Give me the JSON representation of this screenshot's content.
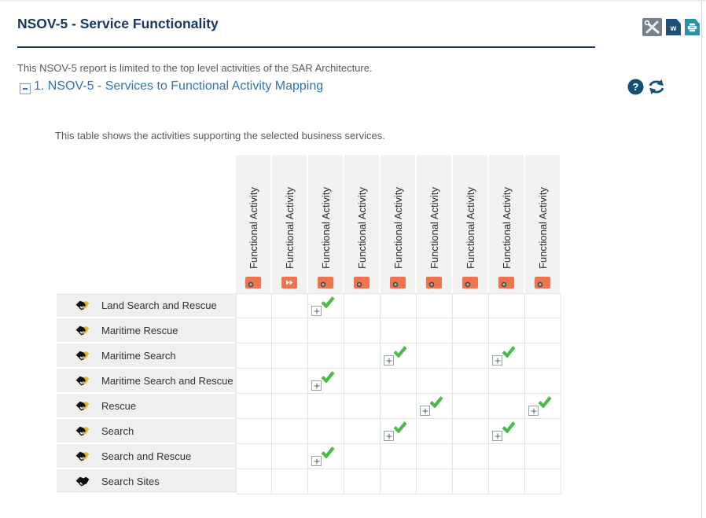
{
  "header": {
    "title": "NSOV-5 - Service Functionality",
    "toolbar_icons": [
      {
        "name": "tools-icon"
      },
      {
        "name": "word-export-icon",
        "letter": "w"
      },
      {
        "name": "print-icon"
      }
    ]
  },
  "intro_text": "This NSOV-5 report is limited to the top level activities of the SAR Architecture.",
  "section": {
    "heading": "1. NSOV-5 - Services to Functional Activity Mapping",
    "collapse_icon": "collapse-minus-icon",
    "help_icon": "help-icon",
    "refresh_icon": "refresh-icon"
  },
  "table_caption": "This table shows the activities supporting the selected business services.",
  "matrix": {
    "columns": [
      {
        "label": "Functional Activity",
        "icon": "functional-activity-icon"
      },
      {
        "label": "Functional Activity",
        "icon": "functional-activity-forward-icon"
      },
      {
        "label": "Functional Activity",
        "icon": "functional-activity-icon"
      },
      {
        "label": "Functional Activity",
        "icon": "functional-activity-icon"
      },
      {
        "label": "Functional Activity",
        "icon": "functional-activity-icon"
      },
      {
        "label": "Functional Activity",
        "icon": "functional-activity-icon"
      },
      {
        "label": "Functional Activity",
        "icon": "functional-activity-icon"
      },
      {
        "label": "Functional Activity",
        "icon": "functional-activity-icon"
      },
      {
        "label": "Functional Activity",
        "icon": "functional-activity-icon"
      }
    ],
    "rows": [
      {
        "label": "Land Search and Rescue",
        "icon": "service-icon",
        "checks": [
          3
        ]
      },
      {
        "label": "Maritime Rescue",
        "icon": "service-icon",
        "checks": []
      },
      {
        "label": "Maritime Search",
        "icon": "service-icon",
        "checks": [
          5,
          8
        ]
      },
      {
        "label": "Maritime Search and Rescue",
        "icon": "service-icon",
        "checks": [
          3
        ]
      },
      {
        "label": "Rescue",
        "icon": "service-icon",
        "checks": [
          6,
          9
        ]
      },
      {
        "label": "Search",
        "icon": "service-icon",
        "checks": [
          5,
          8
        ]
      },
      {
        "label": "Search and Rescue",
        "icon": "service-icon",
        "checks": [
          3
        ]
      },
      {
        "label": "Search Sites",
        "icon": "service-black-icon",
        "checks": []
      }
    ],
    "check_icon": "green-check-icon",
    "expand_icon": "expand-plus-icon"
  },
  "colors": {
    "title_navy": "#17375D",
    "section_blue": "#2E74B5",
    "icon_navy": "#174F76",
    "orange_icon": "#EE7450",
    "check_green": "#4CBB4F",
    "word_blue": "#1F4E79",
    "print_teal": "#2F8DAE",
    "tools_gray": "#75828E",
    "header_bg": "#F2F2F2",
    "row_label_bg": "#EFEFF0",
    "grid_border": "#E4E4E4"
  }
}
